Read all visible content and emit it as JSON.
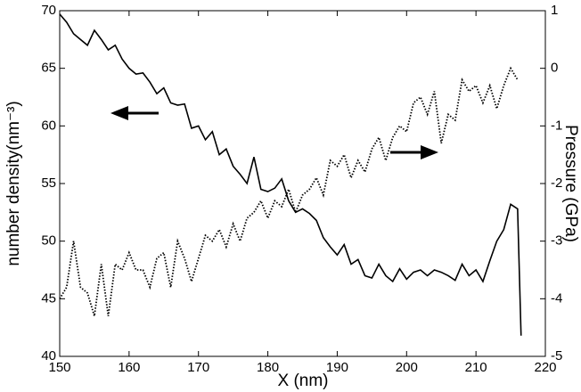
{
  "chart_data": {
    "type": "line",
    "xlabel": "X (nm)",
    "ylabel": "number density(nm⁻³)",
    "y2label": "Pressure (GPa)",
    "xlim": [
      150,
      220
    ],
    "xticks": [
      150,
      160,
      170,
      180,
      190,
      200,
      210,
      220
    ],
    "ylim": [
      40,
      70
    ],
    "yticks": [
      40,
      45,
      50,
      55,
      60,
      65,
      70
    ],
    "y2lim": [
      -5,
      1
    ],
    "y2ticks": [
      -5,
      -4,
      -3,
      -2,
      -1,
      0,
      1
    ],
    "grid": false,
    "series": [
      {
        "name": "number density",
        "color": "#000000",
        "dash": "solid",
        "axis": "y",
        "x": [
          150,
          151,
          152,
          153,
          154,
          155,
          156,
          157,
          158,
          159,
          160,
          161,
          162,
          163,
          164,
          165,
          166,
          167,
          168,
          169,
          170,
          171,
          172,
          173,
          174,
          175,
          176,
          177,
          178,
          179,
          180,
          181,
          182,
          183,
          184,
          185,
          186,
          187,
          188,
          189,
          190,
          191,
          192,
          193,
          194,
          195,
          196,
          197,
          198,
          199,
          200,
          201,
          202,
          203,
          204,
          205,
          206,
          207,
          208,
          209,
          210,
          211,
          212,
          213,
          214,
          215,
          216,
          216.5
        ],
        "values": [
          69.7,
          69,
          68,
          67.5,
          67,
          68.3,
          67.5,
          66.6,
          67,
          65.8,
          65,
          64.5,
          64.6,
          63.8,
          62.8,
          63.3,
          62,
          61.8,
          61.9,
          59.8,
          60,
          58.8,
          59.5,
          57.5,
          58,
          56.5,
          55.8,
          55,
          57.3,
          54.5,
          54.3,
          54.6,
          55.4,
          53.5,
          52.5,
          52.8,
          52.4,
          51.8,
          50.3,
          49.5,
          48.8,
          49.7,
          48,
          48.4,
          47,
          46.8,
          48,
          47,
          46.5,
          47.6,
          46.7,
          47.3,
          47.5,
          47,
          47.5,
          47.3,
          47,
          46.6,
          48,
          47,
          47.5,
          46.5,
          48.3,
          50,
          51,
          53.2,
          52.8,
          41.8
        ]
      },
      {
        "name": "pressure",
        "color": "#000000",
        "dash": "dotted",
        "axis": "y2",
        "x": [
          150,
          151,
          152,
          153,
          154,
          155,
          156,
          157,
          158,
          159,
          160,
          161,
          162,
          163,
          164,
          165,
          166,
          167,
          168,
          169,
          170,
          171,
          172,
          173,
          174,
          175,
          176,
          177,
          178,
          179,
          180,
          181,
          182,
          183,
          184,
          185,
          186,
          187,
          188,
          189,
          190,
          191,
          192,
          193,
          194,
          195,
          196,
          197,
          198,
          199,
          200,
          201,
          202,
          203,
          204,
          205,
          206,
          207,
          208,
          209,
          210,
          211,
          212,
          213,
          214,
          215,
          216
        ],
        "values": [
          -4,
          -3.8,
          -3,
          -3.8,
          -3.9,
          -4.3,
          -3.4,
          -4.3,
          -3.4,
          -3.5,
          -3.2,
          -3.5,
          -3.5,
          -3.8,
          -3.3,
          -3.2,
          -3.8,
          -3,
          -3.3,
          -3.7,
          -3.3,
          -2.9,
          -3,
          -2.8,
          -3.1,
          -2.7,
          -3,
          -2.6,
          -2.5,
          -2.3,
          -2.6,
          -2.3,
          -2.4,
          -2.1,
          -2.5,
          -2.2,
          -2.1,
          -1.9,
          -2.2,
          -1.6,
          -1.7,
          -1.5,
          -1.9,
          -1.6,
          -1.8,
          -1.4,
          -1.2,
          -1.6,
          -1.2,
          -1,
          -1.1,
          -0.6,
          -0.5,
          -0.8,
          -0.4,
          -1.3,
          -0.8,
          -0.9,
          -0.2,
          -0.4,
          -0.3,
          -0.6,
          -0.3,
          -0.7,
          -0.3,
          0,
          -0.2
        ]
      }
    ]
  }
}
